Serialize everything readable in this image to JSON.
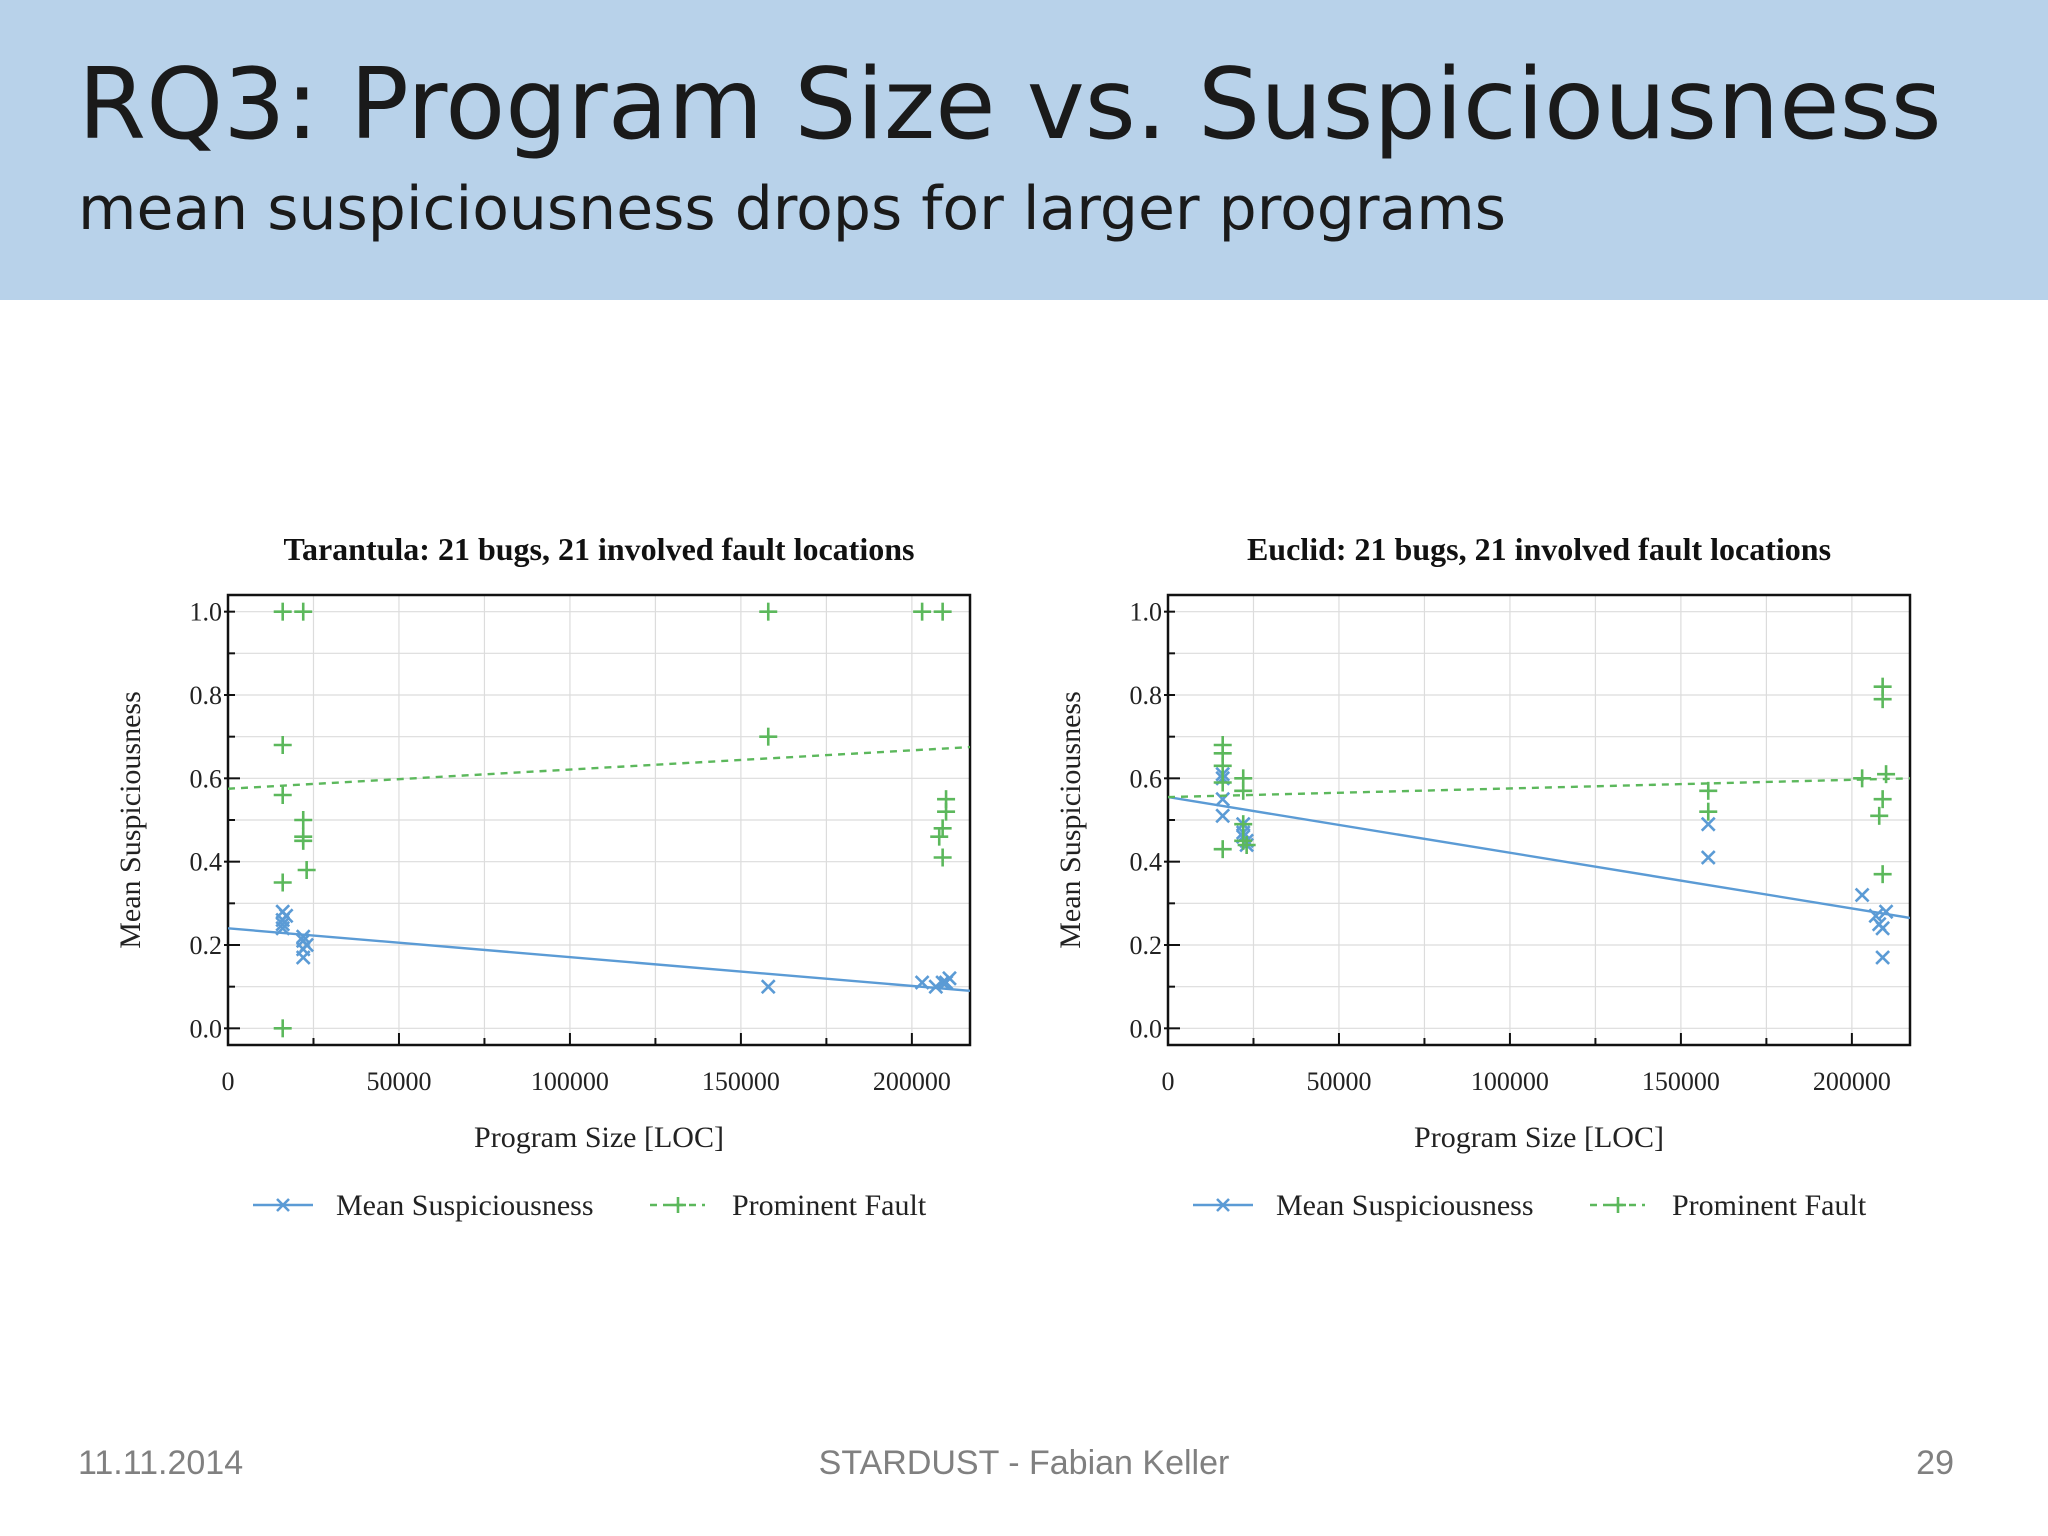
{
  "slide": {
    "title": "RQ3: Program Size vs. Suspiciousness",
    "subtitle": "mean suspiciousness drops for larger programs",
    "date": "11.11.2014",
    "footer": "STARDUST - Fabian Keller",
    "page": "29"
  },
  "colors": {
    "header_bg": "#b8d2ea",
    "mean": "#5b9bd5",
    "fault": "#5cb85c"
  },
  "chart_data": [
    {
      "type": "scatter",
      "title": "Tarantula: 21 bugs, 21 involved fault locations",
      "xlabel": "Program Size [LOC]",
      "ylabel": "Mean Suspiciousness",
      "xlim": [
        0,
        217000
      ],
      "ylim": [
        -0.04,
        1.04
      ],
      "xticks": [
        0,
        50000,
        100000,
        150000,
        200000
      ],
      "xtick_labels": [
        "0",
        "50000",
        "100000",
        "150000",
        "200000"
      ],
      "yticks": [
        0.0,
        0.2,
        0.4,
        0.6,
        0.8,
        1.0
      ],
      "ytick_labels": [
        "0.0",
        "0.2",
        "0.4",
        "0.6",
        "0.8",
        "1.0"
      ],
      "grid": true,
      "legend": {
        "position": "bottom",
        "entries": [
          "Mean Suspiciousness",
          "Prominent Fault"
        ]
      },
      "series": [
        {
          "name": "Mean Suspiciousness",
          "marker": "x",
          "points": [
            [
              16000,
              0.28
            ],
            [
              16000,
              0.26
            ],
            [
              16000,
              0.25
            ],
            [
              16000,
              0.24
            ],
            [
              17000,
              0.27
            ],
            [
              22000,
              0.22
            ],
            [
              22000,
              0.21
            ],
            [
              22000,
              0.19
            ],
            [
              22000,
              0.17
            ],
            [
              23000,
              0.2
            ],
            [
              158000,
              0.1
            ],
            [
              203000,
              0.11
            ],
            [
              207000,
              0.1
            ],
            [
              209000,
              0.11
            ],
            [
              210000,
              0.11
            ],
            [
              211000,
              0.12
            ]
          ],
          "trend": [
            [
              0,
              0.24
            ],
            [
              217000,
              0.09
            ]
          ],
          "trend_style": "solid"
        },
        {
          "name": "Prominent Fault",
          "marker": "+",
          "points": [
            [
              16000,
              1.0
            ],
            [
              22000,
              1.0
            ],
            [
              16000,
              0.68
            ],
            [
              16000,
              0.56
            ],
            [
              16000,
              0.35
            ],
            [
              16000,
              0.0
            ],
            [
              22000,
              0.5
            ],
            [
              22000,
              0.46
            ],
            [
              22000,
              0.45
            ],
            [
              23000,
              0.38
            ],
            [
              158000,
              1.0
            ],
            [
              158000,
              0.7
            ],
            [
              203000,
              1.0
            ],
            [
              209000,
              1.0
            ],
            [
              208000,
              0.46
            ],
            [
              209000,
              0.48
            ],
            [
              210000,
              0.52
            ],
            [
              210000,
              0.55
            ],
            [
              209000,
              0.41
            ]
          ],
          "trend": [
            [
              0,
              0.575
            ],
            [
              217000,
              0.675
            ]
          ],
          "trend_style": "dashed"
        }
      ]
    },
    {
      "type": "scatter",
      "title": "Euclid: 21 bugs, 21 involved fault locations",
      "xlabel": "Program Size [LOC]",
      "ylabel": "Mean Suspiciousness",
      "xlim": [
        0,
        217000
      ],
      "ylim": [
        -0.04,
        1.04
      ],
      "xticks": [
        0,
        50000,
        100000,
        150000,
        200000
      ],
      "xtick_labels": [
        "0",
        "50000",
        "100000",
        "150000",
        "200000"
      ],
      "yticks": [
        0.0,
        0.2,
        0.4,
        0.6,
        0.8,
        1.0
      ],
      "ytick_labels": [
        "0.0",
        "0.2",
        "0.4",
        "0.6",
        "0.8",
        "1.0"
      ],
      "grid": true,
      "legend": {
        "position": "bottom",
        "entries": [
          "Mean Suspiciousness",
          "Prominent Fault"
        ]
      },
      "series": [
        {
          "name": "Mean Suspiciousness",
          "marker": "x",
          "points": [
            [
              16000,
              0.61
            ],
            [
              16000,
              0.6
            ],
            [
              16000,
              0.55
            ],
            [
              16000,
              0.51
            ],
            [
              22000,
              0.49
            ],
            [
              22000,
              0.47
            ],
            [
              22000,
              0.46
            ],
            [
              23000,
              0.44
            ],
            [
              23000,
              0.45
            ],
            [
              158000,
              0.49
            ],
            [
              158000,
              0.41
            ],
            [
              203000,
              0.32
            ],
            [
              207000,
              0.27
            ],
            [
              208000,
              0.25
            ],
            [
              209000,
              0.24
            ],
            [
              210000,
              0.28
            ],
            [
              209000,
              0.17
            ]
          ],
          "trend": [
            [
              0,
              0.555
            ],
            [
              217000,
              0.265
            ]
          ],
          "trend_style": "solid"
        },
        {
          "name": "Prominent Fault",
          "marker": "+",
          "points": [
            [
              16000,
              0.68
            ],
            [
              16000,
              0.66
            ],
            [
              16000,
              0.63
            ],
            [
              16000,
              0.59
            ],
            [
              16000,
              0.43
            ],
            [
              22000,
              0.6
            ],
            [
              22000,
              0.57
            ],
            [
              22000,
              0.49
            ],
            [
              22000,
              0.45
            ],
            [
              23000,
              0.44
            ],
            [
              158000,
              0.57
            ],
            [
              158000,
              0.52
            ],
            [
              203000,
              0.6
            ],
            [
              209000,
              0.82
            ],
            [
              209000,
              0.79
            ],
            [
              210000,
              0.61
            ],
            [
              209000,
              0.55
            ],
            [
              208000,
              0.51
            ],
            [
              209000,
              0.37
            ]
          ],
          "trend": [
            [
              0,
              0.555
            ],
            [
              217000,
              0.6
            ]
          ],
          "trend_style": "dashed"
        }
      ]
    }
  ]
}
